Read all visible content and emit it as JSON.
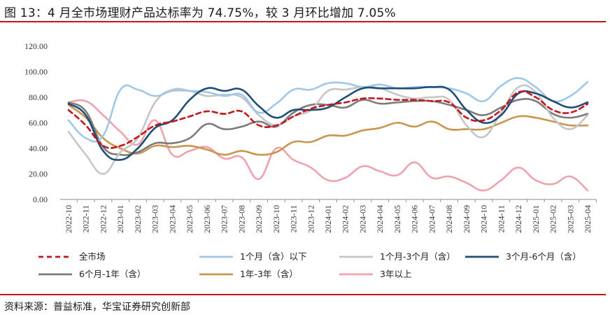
{
  "title": "图 13：4 月全市场理财产品达标率为 74.75%，较 3 月环比增加 7.05%",
  "source": "资料来源：普益标准，华宝证券研究创新部",
  "chart_data": {
    "type": "line",
    "title": "图 13：4 月全市场理财产品达标率为 74.75%，较 3 月环比增加 7.05%",
    "xlabel": "",
    "ylabel": "",
    "ylim": [
      0,
      120
    ],
    "yticks": [
      "0.00",
      "20.00",
      "40.00",
      "60.00",
      "80.00",
      "100.00",
      "120.00"
    ],
    "grid": false,
    "legend_position": "bottom",
    "categories": [
      "2022-10",
      "2022-11",
      "2022-12",
      "2023-01",
      "2023-02",
      "2023-03",
      "2023-04",
      "2023-05",
      "2023-06",
      "2023-07",
      "2023-08",
      "2023-09",
      "2023-10",
      "2023-11",
      "2023-12",
      "2024-01",
      "2024-02",
      "2024-03",
      "2024-04",
      "2024-05",
      "2024-06",
      "2024-07",
      "2024-08",
      "2024-09",
      "2024-10",
      "2024-11",
      "2024-12",
      "2025-01",
      "2025-02",
      "2025-03",
      "2025-04"
    ],
    "series": [
      {
        "name": "全市场",
        "color": "#c4161c",
        "dash": true,
        "values": [
          70,
          58,
          42,
          42,
          49,
          58,
          61,
          65,
          69,
          67,
          69,
          58,
          58,
          65,
          71,
          74,
          76,
          79,
          79,
          78,
          78,
          77,
          76,
          64,
          62,
          70,
          84,
          80,
          70,
          68,
          74.75
        ]
      },
      {
        "name": "1个月（含）以下",
        "color": "#9fc8e8",
        "dash": false,
        "values": [
          62,
          48,
          50,
          86,
          86,
          81,
          85,
          85,
          84,
          81,
          82,
          68,
          75,
          86,
          86,
          91,
          91,
          88,
          90,
          87,
          88,
          88,
          87,
          83,
          77,
          89,
          95,
          88,
          77,
          81,
          92
        ]
      },
      {
        "name": "1个月-3个月（含）",
        "color": "#c6c6c6",
        "dash": false,
        "values": [
          53,
          35,
          20,
          37,
          48,
          76,
          86,
          85,
          81,
          82,
          80,
          66,
          58,
          65,
          70,
          85,
          86,
          88,
          87,
          82,
          79,
          80,
          78,
          58,
          49,
          68,
          88,
          84,
          64,
          55,
          66
        ]
      },
      {
        "name": "3个月-6个月（含）",
        "color": "#1f4e79",
        "dash": false,
        "values": [
          75,
          66,
          38,
          31,
          40,
          56,
          62,
          78,
          87,
          85,
          86,
          73,
          64,
          70,
          70,
          72,
          80,
          87,
          87,
          87,
          87,
          88,
          86,
          70,
          60,
          66,
          83,
          83,
          77,
          72,
          76
        ]
      },
      {
        "name": "6个月-1年（含）",
        "color": "#7b7b7b",
        "dash": false,
        "values": [
          76,
          69,
          41,
          35,
          37,
          44,
          44,
          48,
          59,
          55,
          57,
          61,
          57,
          68,
          74,
          74,
          72,
          78,
          75,
          76,
          77,
          77,
          74,
          70,
          66,
          72,
          78,
          77,
          67,
          64,
          67
        ]
      },
      {
        "name": "1年-3年（含）",
        "color": "#c8964f",
        "dash": false,
        "values": [
          74,
          64,
          48,
          40,
          36,
          42,
          41,
          42,
          39,
          35,
          38,
          35,
          37,
          45,
          45,
          50,
          50,
          54,
          56,
          60,
          57,
          61,
          55,
          55,
          55,
          60,
          65,
          64,
          61,
          58,
          58
        ]
      },
      {
        "name": "3年以上",
        "color": "#efa2ad",
        "dash": false,
        "values": [
          76,
          77,
          66,
          53,
          43,
          62,
          35,
          38,
          41,
          32,
          33,
          16,
          40,
          31,
          25,
          15,
          17,
          26,
          22,
          19,
          29,
          17,
          18,
          13,
          7,
          15,
          25,
          15,
          12,
          18,
          7
        ]
      }
    ]
  }
}
